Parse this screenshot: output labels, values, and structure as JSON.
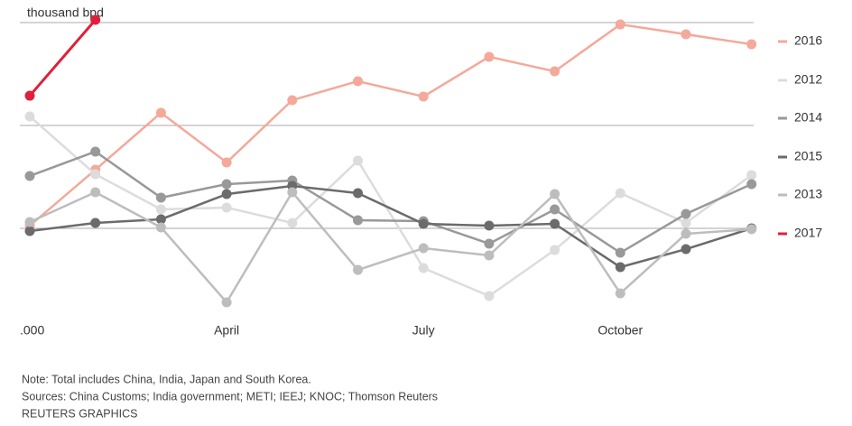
{
  "chart_data": {
    "type": "line",
    "y_label": "thousand bpd",
    "categories": [
      null,
      null,
      null,
      "April",
      null,
      null,
      "July",
      null,
      null,
      "October",
      null,
      null
    ],
    "ylim": [
      4000,
      7000
    ],
    "yticks": [
      {
        "value": 4000,
        "label": ".000"
      },
      5000,
      6000,
      7000
    ],
    "grid": true,
    "legend": "right",
    "series": [
      {
        "name": "2016",
        "color": "#f4a99a",
        "values": [
          5026,
          5570,
          6123,
          5640,
          6246,
          6430,
          6281,
          6667,
          6526,
          6982,
          6886,
          6789
        ]
      },
      {
        "name": "2012",
        "color": "#dcdcdc",
        "values": [
          6088,
          5526,
          5184,
          5202,
          5053,
          5658,
          4614,
          4342,
          4789,
          5342,
          5053,
          5518
        ]
      },
      {
        "name": "2014",
        "color": "#999999",
        "values": [
          5509,
          5746,
          5298,
          5430,
          5465,
          5079,
          5070,
          4851,
          5184,
          4763,
          5140,
          5430
        ]
      },
      {
        "name": "2015",
        "color": "#6b6b6b",
        "values": [
          4974,
          5053,
          5088,
          5333,
          5412,
          5342,
          5044,
          5026,
          5044,
          4623,
          4798,
          5000
        ]
      },
      {
        "name": "2013",
        "color": "#bdbdbd",
        "values": [
          5061,
          5351,
          5009,
          4281,
          5351,
          4596,
          4807,
          4737,
          5333,
          4368,
          4947,
          4991
        ]
      },
      {
        "name": "2017",
        "color": "#e0203a",
        "values": [
          6289,
          7026,
          null,
          null,
          null,
          null,
          null,
          null,
          null,
          null,
          null,
          null
        ]
      }
    ],
    "notes": [
      "Note: Total includes China, India, Japan and South Korea.",
      "Sources: China Customs; India government; METI; IEEJ; KNOC; Thomson Reuters",
      "REUTERS GRAPHICS"
    ]
  }
}
